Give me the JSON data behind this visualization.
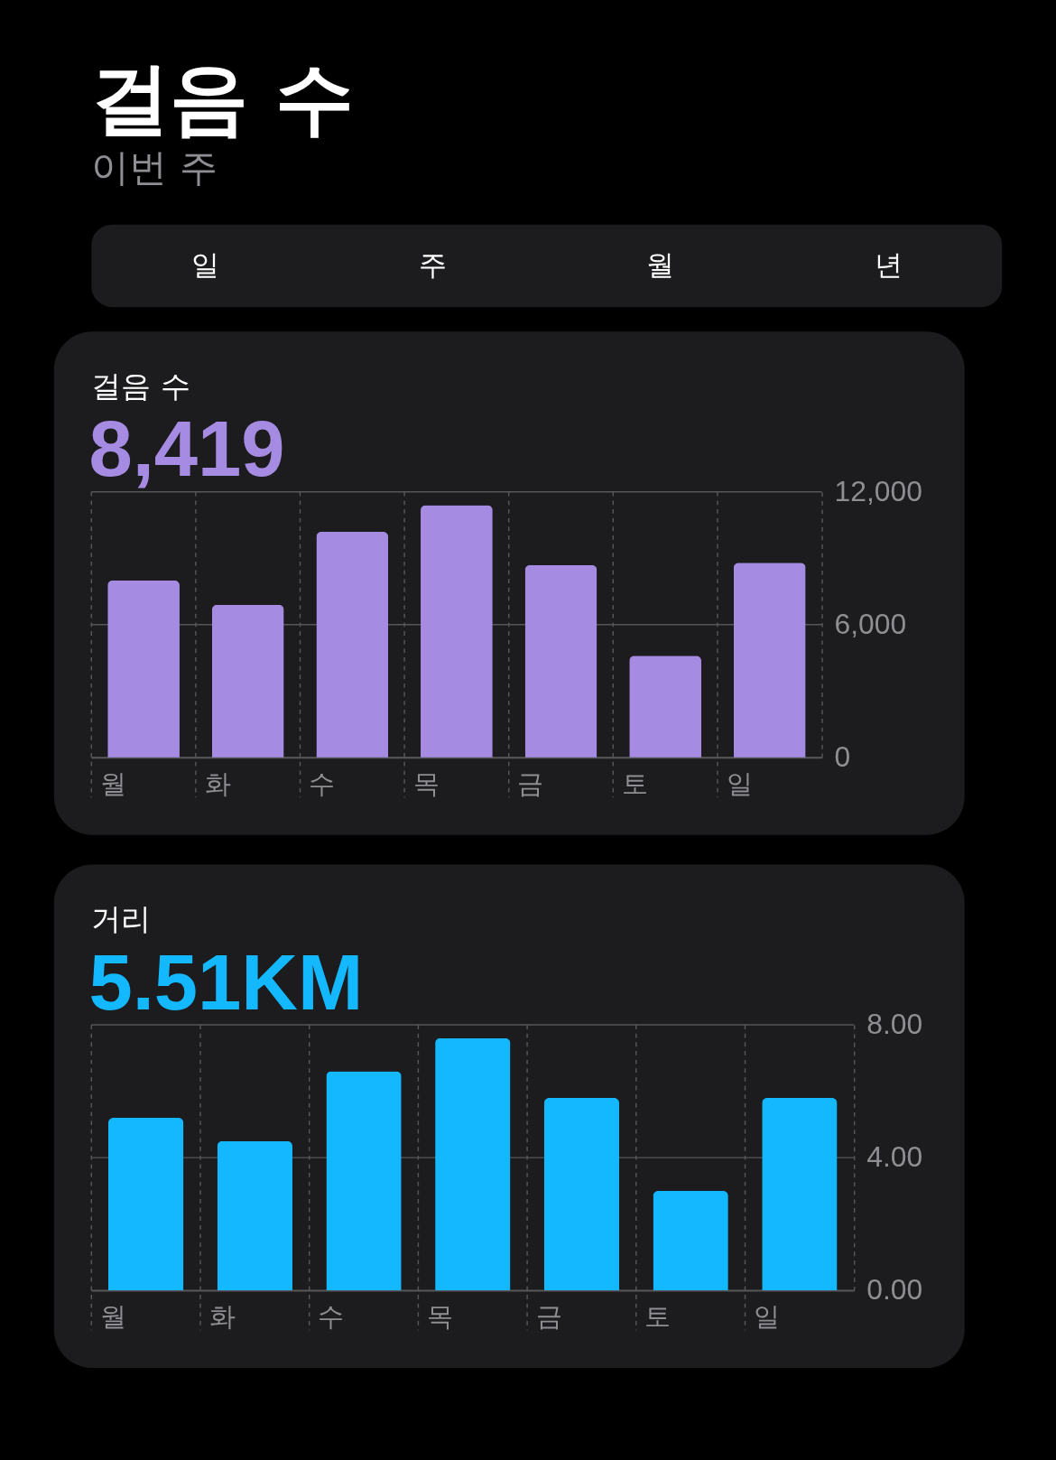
{
  "chart_data": [
    {
      "type": "other",
      "title": "걸음 수",
      "subtitle": "이번 주",
      "annotations": [
        "일",
        "주",
        "월",
        "년"
      ]
    },
    {
      "type": "bar",
      "title": "걸음 수",
      "subtitle": "8,419",
      "categories": [
        "월",
        "화",
        "수",
        "목",
        "금",
        "토",
        "일"
      ],
      "values": [
        8000,
        6900,
        10200,
        11400,
        8700,
        4600,
        8800
      ],
      "color": "#a58be2",
      "ylim": [
        0,
        12000
      ],
      "yticks": [
        0,
        {
          "value": 6000,
          "label": "6,000"
        },
        {
          "value": 12000,
          "label": "12,000"
        }
      ],
      "grid": true
    },
    {
      "type": "bar",
      "title": "거리",
      "subtitle": "5.51KM",
      "categories": [
        "월",
        "화",
        "수",
        "목",
        "금",
        "토",
        "일"
      ],
      "values": [
        5.2,
        4.5,
        6.6,
        7.6,
        5.8,
        3.0,
        5.8
      ],
      "color": "#14b8ff",
      "ylim": [
        0,
        8
      ],
      "yticks": [
        {
          "value": 0,
          "label": "0.00"
        },
        {
          "value": 4,
          "label": "4.00"
        },
        {
          "value": 8,
          "label": "8.00"
        }
      ],
      "grid": true
    }
  ]
}
